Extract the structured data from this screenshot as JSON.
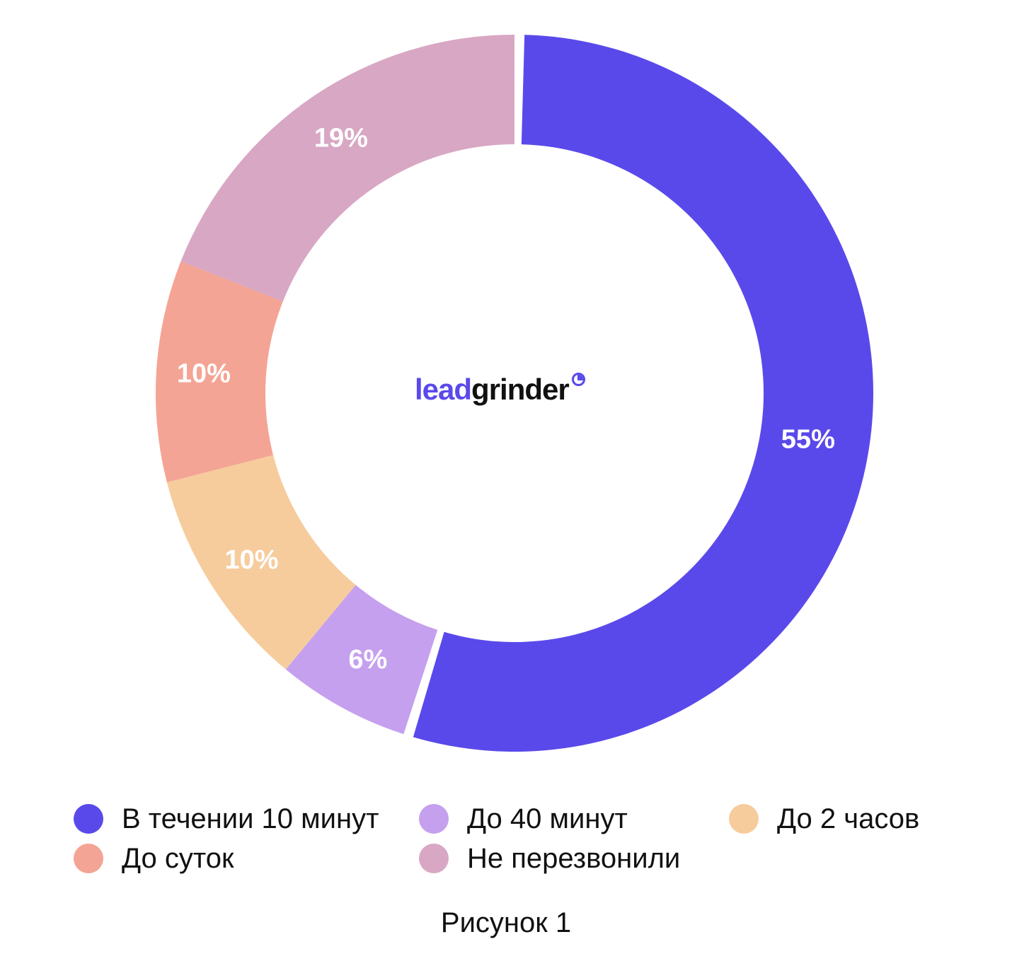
{
  "chart_data": {
    "type": "pie",
    "variant": "donut",
    "categories": [
      "В течении 10 минут",
      "До 40 минут",
      "До 2 часов",
      "До суток",
      "Не перезвонили"
    ],
    "values": [
      55,
      6,
      10,
      10,
      19
    ],
    "labels": [
      "55%",
      "6%",
      "10%",
      "10%",
      "19%"
    ],
    "colors": [
      "#5a49ea",
      "#c5a0ee",
      "#f6cc9d",
      "#f4a494",
      "#d8a7c4"
    ],
    "legend_position": "bottom"
  },
  "logo": {
    "part1": "lead",
    "part2": "grinder"
  },
  "legend": {
    "items": [
      {
        "label": "В течении 10 минут",
        "color": "#5a49ea"
      },
      {
        "label": "До 40 минут",
        "color": "#c5a0ee"
      },
      {
        "label": "До 2 часов",
        "color": "#f6cc9d"
      },
      {
        "label": "До суток",
        "color": "#f4a494"
      },
      {
        "label": "Не перезвонили",
        "color": "#d8a7c4"
      }
    ]
  },
  "caption": "Рисунок 1"
}
